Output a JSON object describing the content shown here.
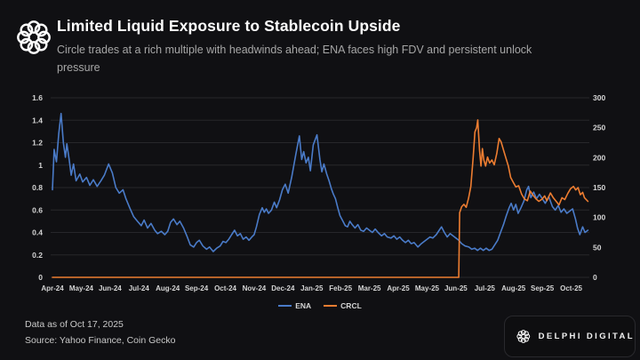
{
  "header": {
    "title": "Limited Liquid Exposure to Stablecoin Upside",
    "subtitle": "Circle trades at a rich multiple with headwinds ahead; ENA faces high FDV and persistent unlock pressure"
  },
  "chart_data": {
    "type": "line",
    "x_unit": "months from Apr-2024",
    "x_range_months": 18.6,
    "x_labels": [
      "Apr-24",
      "May-24",
      "Jun-24",
      "Jul-24",
      "Aug-24",
      "Sep-24",
      "Oct-24",
      "Nov-24",
      "Dec-24",
      "Jan-25",
      "Feb-25",
      "Mar-25",
      "Apr-25",
      "May-25",
      "Jun-25",
      "Jul-25",
      "Aug-25",
      "Sep-25",
      "Oct-25"
    ],
    "grid": true,
    "legend_position": "bottom-center",
    "left_axis": {
      "min": 0,
      "max": 1.6,
      "tick_labels": [
        "0",
        "0.2",
        "0.4",
        "0.6",
        "0.8",
        "1",
        "1.2",
        "1.4",
        "1.6"
      ]
    },
    "right_axis": {
      "min": 0,
      "max": 300,
      "tick_labels": [
        "0",
        "50",
        "100",
        "150",
        "200",
        "250",
        "300"
      ]
    },
    "series": [
      {
        "name": "ENA",
        "axis": "left",
        "color": "#4a7bc8",
        "points": [
          [
            0,
            0.78
          ],
          [
            0.06,
            1.14
          ],
          [
            0.14,
            1.03
          ],
          [
            0.22,
            1.28
          ],
          [
            0.3,
            1.46
          ],
          [
            0.38,
            1.2
          ],
          [
            0.45,
            1.07
          ],
          [
            0.5,
            1.19
          ],
          [
            0.58,
            1.05
          ],
          [
            0.65,
            0.91
          ],
          [
            0.73,
            1.01
          ],
          [
            0.82,
            0.86
          ],
          [
            0.95,
            0.92
          ],
          [
            1.05,
            0.85
          ],
          [
            1.18,
            0.89
          ],
          [
            1.3,
            0.82
          ],
          [
            1.42,
            0.87
          ],
          [
            1.55,
            0.81
          ],
          [
            1.68,
            0.86
          ],
          [
            1.8,
            0.91
          ],
          [
            1.95,
            1.01
          ],
          [
            2.08,
            0.93
          ],
          [
            2.2,
            0.8
          ],
          [
            2.32,
            0.75
          ],
          [
            2.45,
            0.78
          ],
          [
            2.55,
            0.7
          ],
          [
            2.68,
            0.62
          ],
          [
            2.82,
            0.54
          ],
          [
            2.95,
            0.5
          ],
          [
            3.08,
            0.46
          ],
          [
            3.18,
            0.51
          ],
          [
            3.3,
            0.44
          ],
          [
            3.42,
            0.48
          ],
          [
            3.55,
            0.42
          ],
          [
            3.65,
            0.39
          ],
          [
            3.78,
            0.41
          ],
          [
            3.9,
            0.38
          ],
          [
            4,
            0.41
          ],
          [
            4.1,
            0.49
          ],
          [
            4.2,
            0.52
          ],
          [
            4.32,
            0.47
          ],
          [
            4.42,
            0.5
          ],
          [
            4.55,
            0.44
          ],
          [
            4.68,
            0.36
          ],
          [
            4.78,
            0.29
          ],
          [
            4.9,
            0.27
          ],
          [
            5,
            0.31
          ],
          [
            5.1,
            0.33
          ],
          [
            5.22,
            0.28
          ],
          [
            5.35,
            0.25
          ],
          [
            5.45,
            0.27
          ],
          [
            5.58,
            0.23
          ],
          [
            5.7,
            0.26
          ],
          [
            5.82,
            0.28
          ],
          [
            5.92,
            0.32
          ],
          [
            6.02,
            0.31
          ],
          [
            6.12,
            0.34
          ],
          [
            6.22,
            0.38
          ],
          [
            6.32,
            0.42
          ],
          [
            6.42,
            0.37
          ],
          [
            6.52,
            0.39
          ],
          [
            6.62,
            0.34
          ],
          [
            6.72,
            0.36
          ],
          [
            6.82,
            0.33
          ],
          [
            6.92,
            0.36
          ],
          [
            7,
            0.38
          ],
          [
            7.08,
            0.45
          ],
          [
            7.18,
            0.56
          ],
          [
            7.28,
            0.62
          ],
          [
            7.35,
            0.58
          ],
          [
            7.42,
            0.61
          ],
          [
            7.5,
            0.57
          ],
          [
            7.6,
            0.6
          ],
          [
            7.7,
            0.67
          ],
          [
            7.78,
            0.62
          ],
          [
            7.88,
            0.69
          ],
          [
            7.98,
            0.78
          ],
          [
            8.08,
            0.83
          ],
          [
            8.18,
            0.75
          ],
          [
            8.3,
            0.89
          ],
          [
            8.45,
            1.1
          ],
          [
            8.57,
            1.26
          ],
          [
            8.65,
            1.05
          ],
          [
            8.72,
            1.12
          ],
          [
            8.8,
            1.02
          ],
          [
            8.88,
            1.07
          ],
          [
            8.95,
            0.95
          ],
          [
            9.05,
            1.18
          ],
          [
            9.18,
            1.27
          ],
          [
            9.28,
            1.05
          ],
          [
            9.35,
            0.94
          ],
          [
            9.42,
            1.01
          ],
          [
            9.52,
            0.92
          ],
          [
            9.6,
            0.86
          ],
          [
            9.68,
            0.79
          ],
          [
            9.75,
            0.74
          ],
          [
            9.82,
            0.7
          ],
          [
            9.9,
            0.62
          ],
          [
            9.98,
            0.55
          ],
          [
            10.08,
            0.5
          ],
          [
            10.16,
            0.46
          ],
          [
            10.24,
            0.45
          ],
          [
            10.32,
            0.5
          ],
          [
            10.4,
            0.47
          ],
          [
            10.5,
            0.44
          ],
          [
            10.6,
            0.47
          ],
          [
            10.7,
            0.42
          ],
          [
            10.8,
            0.41
          ],
          [
            10.9,
            0.44
          ],
          [
            11,
            0.42
          ],
          [
            11.1,
            0.4
          ],
          [
            11.2,
            0.43
          ],
          [
            11.3,
            0.4
          ],
          [
            11.42,
            0.37
          ],
          [
            11.52,
            0.39
          ],
          [
            11.62,
            0.36
          ],
          [
            11.75,
            0.35
          ],
          [
            11.85,
            0.37
          ],
          [
            11.95,
            0.34
          ],
          [
            12.05,
            0.36
          ],
          [
            12.15,
            0.33
          ],
          [
            12.25,
            0.31
          ],
          [
            12.35,
            0.33
          ],
          [
            12.45,
            0.3
          ],
          [
            12.55,
            0.31
          ],
          [
            12.68,
            0.27
          ],
          [
            12.8,
            0.3
          ],
          [
            12.9,
            0.32
          ],
          [
            13,
            0.34
          ],
          [
            13.1,
            0.36
          ],
          [
            13.2,
            0.35
          ],
          [
            13.32,
            0.38
          ],
          [
            13.42,
            0.42
          ],
          [
            13.5,
            0.45
          ],
          [
            13.6,
            0.4
          ],
          [
            13.7,
            0.36
          ],
          [
            13.8,
            0.39
          ],
          [
            13.9,
            0.37
          ],
          [
            14,
            0.35
          ],
          [
            14.1,
            0.33
          ],
          [
            14.2,
            0.3
          ],
          [
            14.32,
            0.28
          ],
          [
            14.45,
            0.27
          ],
          [
            14.55,
            0.25
          ],
          [
            14.65,
            0.26
          ],
          [
            14.75,
            0.24
          ],
          [
            14.85,
            0.26
          ],
          [
            14.95,
            0.24
          ],
          [
            15.05,
            0.26
          ],
          [
            15.15,
            0.24
          ],
          [
            15.25,
            0.25
          ],
          [
            15.35,
            0.29
          ],
          [
            15.45,
            0.33
          ],
          [
            15.55,
            0.4
          ],
          [
            15.65,
            0.47
          ],
          [
            15.75,
            0.55
          ],
          [
            15.85,
            0.62
          ],
          [
            15.92,
            0.66
          ],
          [
            16,
            0.6
          ],
          [
            16.08,
            0.65
          ],
          [
            16.16,
            0.57
          ],
          [
            16.26,
            0.62
          ],
          [
            16.36,
            0.68
          ],
          [
            16.46,
            0.78
          ],
          [
            16.52,
            0.81
          ],
          [
            16.6,
            0.71
          ],
          [
            16.7,
            0.76
          ],
          [
            16.8,
            0.7
          ],
          [
            16.9,
            0.74
          ],
          [
            17,
            0.7
          ],
          [
            17.1,
            0.66
          ],
          [
            17.22,
            0.72
          ],
          [
            17.35,
            0.63
          ],
          [
            17.45,
            0.6
          ],
          [
            17.55,
            0.64
          ],
          [
            17.65,
            0.58
          ],
          [
            17.75,
            0.61
          ],
          [
            17.85,
            0.57
          ],
          [
            17.95,
            0.59
          ],
          [
            18.05,
            0.61
          ],
          [
            18.15,
            0.52
          ],
          [
            18.22,
            0.44
          ],
          [
            18.3,
            0.38
          ],
          [
            18.4,
            0.45
          ],
          [
            18.48,
            0.4
          ],
          [
            18.58,
            0.42
          ]
        ]
      },
      {
        "name": "CRCL",
        "axis": "right",
        "color": "#ed7d31",
        "points": [
          [
            0,
            0
          ],
          [
            2,
            0
          ],
          [
            4,
            0
          ],
          [
            6,
            0
          ],
          [
            8,
            0
          ],
          [
            10,
            0
          ],
          [
            12,
            0
          ],
          [
            13.5,
            0
          ],
          [
            14,
            0
          ],
          [
            14.1,
            0
          ],
          [
            14.13,
            108
          ],
          [
            14.2,
            118
          ],
          [
            14.28,
            122
          ],
          [
            14.36,
            117
          ],
          [
            14.44,
            132
          ],
          [
            14.52,
            152
          ],
          [
            14.6,
            200
          ],
          [
            14.66,
            243
          ],
          [
            14.72,
            250
          ],
          [
            14.76,
            263
          ],
          [
            14.82,
            212
          ],
          [
            14.87,
            186
          ],
          [
            14.92,
            215
          ],
          [
            14.97,
            196
          ],
          [
            15.03,
            186
          ],
          [
            15.1,
            201
          ],
          [
            15.17,
            191
          ],
          [
            15.25,
            196
          ],
          [
            15.33,
            188
          ],
          [
            15.42,
            207
          ],
          [
            15.5,
            232
          ],
          [
            15.57,
            226
          ],
          [
            15.65,
            213
          ],
          [
            15.73,
            200
          ],
          [
            15.82,
            186
          ],
          [
            15.9,
            167
          ],
          [
            16,
            158
          ],
          [
            16.08,
            151
          ],
          [
            16.18,
            153
          ],
          [
            16.28,
            139
          ],
          [
            16.38,
            131
          ],
          [
            16.48,
            128
          ],
          [
            16.58,
            144
          ],
          [
            16.68,
            137
          ],
          [
            16.78,
            131
          ],
          [
            16.88,
            127
          ],
          [
            17,
            131
          ],
          [
            17.08,
            136
          ],
          [
            17.16,
            128
          ],
          [
            17.28,
            141
          ],
          [
            17.38,
            133
          ],
          [
            17.48,
            127
          ],
          [
            17.58,
            121
          ],
          [
            17.68,
            133
          ],
          [
            17.78,
            130
          ],
          [
            17.88,
            140
          ],
          [
            17.98,
            148
          ],
          [
            18.08,
            152
          ],
          [
            18.16,
            146
          ],
          [
            18.24,
            150
          ],
          [
            18.32,
            138
          ],
          [
            18.4,
            142
          ],
          [
            18.46,
            133
          ],
          [
            18.58,
            127
          ]
        ]
      }
    ]
  },
  "footer": {
    "data_as_of": "Data as of Oct 17, 2025",
    "source": "Source: Yahoo Finance, Coin Gecko",
    "brand": "DELPHI DIGITAL"
  },
  "colors": {
    "background": "#101013",
    "grid": "#27272b",
    "tick_text": "#d5d5d5",
    "subtitle_text": "#a6a6a6"
  }
}
